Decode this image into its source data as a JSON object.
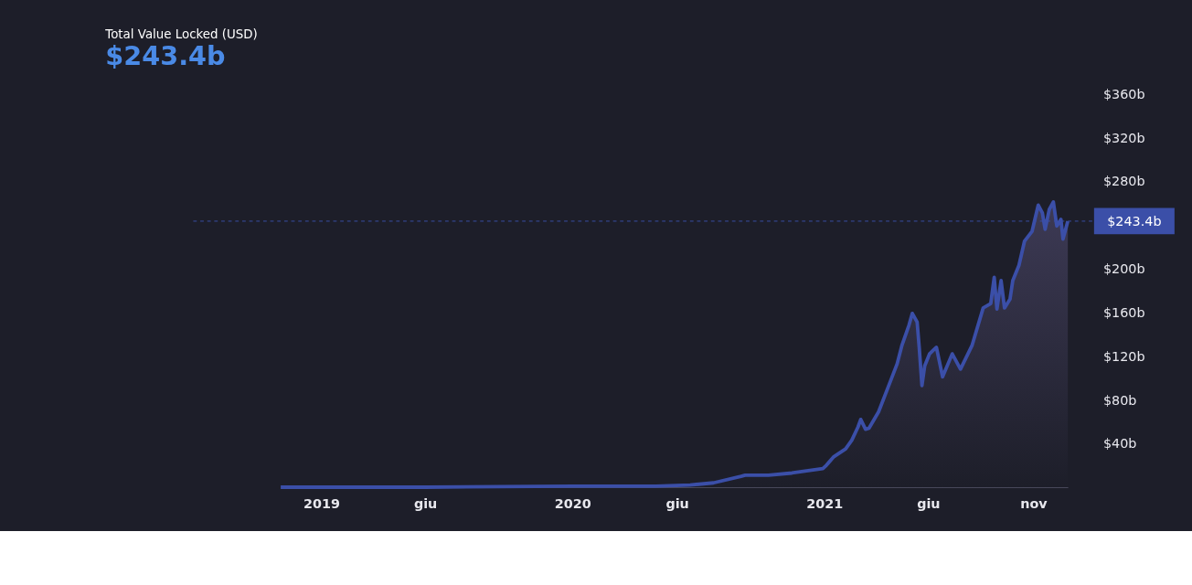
{
  "chart_data": {
    "type": "area",
    "title": "Total Value Locked (USD)",
    "subtitle": "$243.4b",
    "x": [
      "2018-11-03",
      "2019-06-01",
      "2020-01-01",
      "2020-05-01",
      "2020-06-20",
      "2020-07-24",
      "2020-09-02",
      "2020-09-08",
      "2020-10-12",
      "2020-11-15",
      "2020-12-30",
      "2021-01-04",
      "2021-01-15",
      "2021-02-01",
      "2021-02-10",
      "2021-02-19",
      "2021-02-23",
      "2021-03-02",
      "2021-03-07",
      "2021-03-21",
      "2021-04-06",
      "2021-04-17",
      "2021-04-24",
      "2021-05-04",
      "2021-05-09",
      "2021-05-16",
      "2021-05-19",
      "2021-05-23",
      "2021-05-27",
      "2021-06-03",
      "2021-06-13",
      "2021-06-22",
      "2021-07-06",
      "2021-07-18",
      "2021-08-04",
      "2021-08-20",
      "2021-08-31",
      "2021-09-05",
      "2021-09-09",
      "2021-09-15",
      "2021-09-20",
      "2021-09-28",
      "2021-10-02",
      "2021-10-11",
      "2021-10-19",
      "2021-10-30",
      "2021-11-08",
      "2021-11-14",
      "2021-11-18",
      "2021-11-24",
      "2021-11-30",
      "2021-12-05",
      "2021-12-11",
      "2021-12-14",
      "2021-12-21"
    ],
    "series": [
      {
        "color": "#3b4fa8",
        "values": [
          0,
          0,
          1,
          1,
          2,
          4,
          10,
          11,
          11,
          13,
          17,
          20,
          28,
          35,
          43,
          55,
          62,
          53,
          54,
          69,
          95,
          113,
          130,
          148,
          159,
          151,
          128,
          93,
          111,
          122,
          128,
          101,
          122,
          108,
          130,
          164,
          168,
          192,
          163,
          189,
          164,
          172,
          189,
          203,
          225,
          234,
          258,
          251,
          236,
          254,
          261,
          239,
          245,
          227,
          243.4
        ]
      }
    ],
    "ylim": [
      0,
      360
    ],
    "xlim": [
      "2018-11-03",
      "2021-12-21"
    ],
    "yticks": [
      {
        "value": 40,
        "label": "$40b"
      },
      {
        "value": 80,
        "label": "$80b"
      },
      {
        "value": 120,
        "label": "$120b"
      },
      {
        "value": 160,
        "label": "$160b"
      },
      {
        "value": 200,
        "label": "$200b"
      },
      {
        "value": 280,
        "label": "$280b"
      },
      {
        "value": 320,
        "label": "$320b"
      },
      {
        "value": 360,
        "label": "$360b"
      }
    ],
    "xticks": [
      {
        "value": "2019-01-01",
        "label": "2019"
      },
      {
        "value": "2019-06-01",
        "label": "giu"
      },
      {
        "value": "2020-01-01",
        "label": "2020"
      },
      {
        "value": "2020-06-01",
        "label": "giu"
      },
      {
        "value": "2021-01-01",
        "label": "2021"
      },
      {
        "value": "2021-06-01",
        "label": "giu"
      },
      {
        "value": "2021-11-01",
        "label": "nov"
      }
    ],
    "ref_lines": [
      {
        "axis": "y",
        "value": 243.4,
        "label": "$243.4b",
        "color": "#3b4fa8",
        "line_style": "dashed"
      }
    ],
    "grid": false
  }
}
